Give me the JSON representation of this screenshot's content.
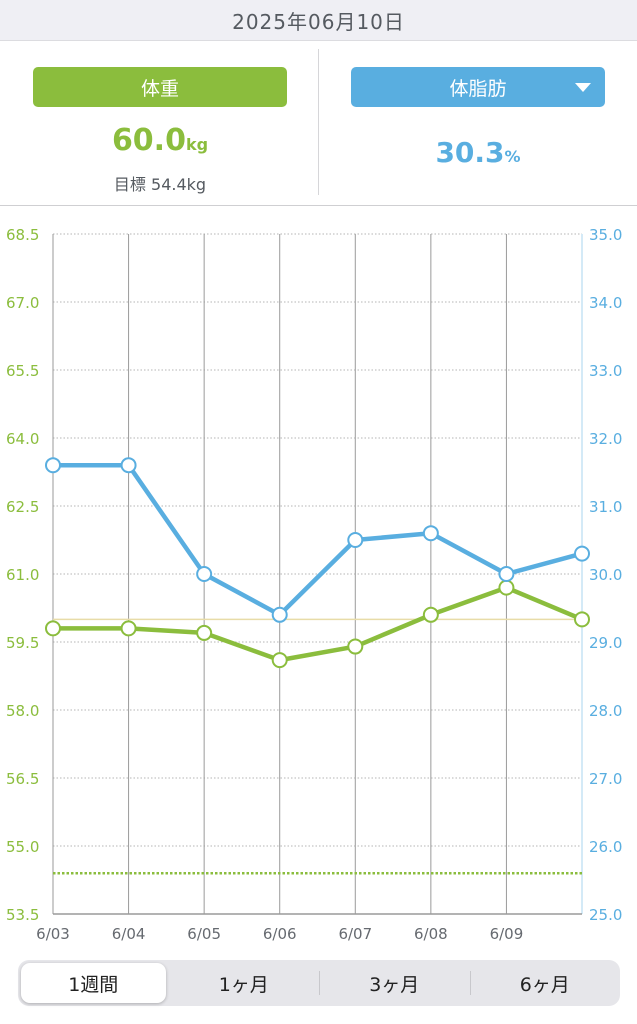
{
  "header": {
    "date": "2025年06月10日"
  },
  "summary": {
    "weight_label": "体重",
    "weight_value": "60.0",
    "weight_unit": "kg",
    "target_text": "目標 54.4kg",
    "fat_label": "体脂肪",
    "fat_value": "30.3",
    "fat_unit": "%"
  },
  "periods": [
    "1週間",
    "1ヶ月",
    "3ヶ月",
    "6ヶ月"
  ],
  "active_period": "1週間",
  "colors": {
    "weight": "#8bbd3d",
    "fat": "#59aee0",
    "reference": "#e8dca8"
  },
  "chart_data": {
    "type": "line",
    "x": [
      "6/03",
      "6/04",
      "6/05",
      "6/06",
      "6/07",
      "6/08",
      "6/09",
      "6/10"
    ],
    "x_tick_labels": [
      "6/03",
      "6/04",
      "6/05",
      "6/06",
      "6/07",
      "6/08",
      "6/09",
      ""
    ],
    "y_left": {
      "min": 53.5,
      "max": 68.5,
      "ticks": [
        "53.5",
        "55.0",
        "56.5",
        "58.0",
        "59.5",
        "61.0",
        "62.5",
        "64.0",
        "65.5",
        "67.0",
        "68.5"
      ]
    },
    "y_right": {
      "min": 25.0,
      "max": 35.0,
      "ticks": [
        "25.0",
        "26.0",
        "27.0",
        "28.0",
        "29.0",
        "30.0",
        "31.0",
        "32.0",
        "33.0",
        "34.0",
        "35.0"
      ]
    },
    "series": [
      {
        "axis": "left",
        "color": "#8bbd3d",
        "values": [
          59.8,
          59.8,
          59.7,
          59.1,
          59.4,
          60.1,
          60.7,
          60.0
        ]
      },
      {
        "axis": "right",
        "color": "#59aee0",
        "values": [
          31.6,
          31.6,
          30.0,
          29.4,
          30.5,
          30.6,
          30.0,
          30.3
        ]
      }
    ],
    "target_line": {
      "axis": "left",
      "value": 54.4,
      "style": "dotted"
    },
    "reference_line": {
      "axis": "left",
      "value": 60.0
    },
    "grid": true
  }
}
